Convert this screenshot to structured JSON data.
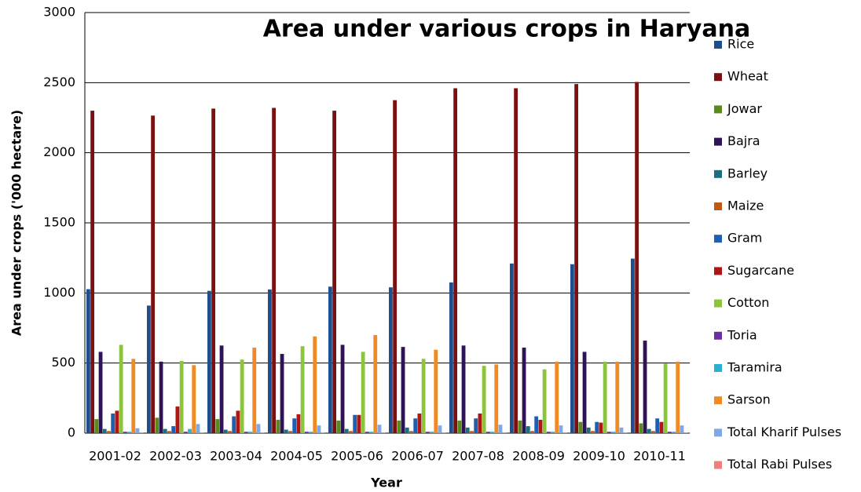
{
  "chart_data": {
    "type": "bar",
    "title": "Area under various crops in Haryana",
    "x_label": "Year",
    "y_label": "Area under crops ('000 hectare)",
    "categories": [
      "2001-02",
      "2002-03",
      "2003-04",
      "2004-05",
      "2005-06",
      "2006-07",
      "2007-08",
      "2008-09",
      "2009-10",
      "2010-11"
    ],
    "ylim": [
      0,
      3000
    ],
    "yticks": [
      0,
      500,
      1000,
      1500,
      2000,
      2500,
      3000
    ],
    "grid": true,
    "legend": "right",
    "series": [
      {
        "name": "Rice",
        "color": "#1f4e8c",
        "values": [
          1027,
          910,
          1015,
          1025,
          1045,
          1040,
          1075,
          1210,
          1205,
          1245
        ]
      },
      {
        "name": "Wheat",
        "color": "#7b1010",
        "values": [
          2300,
          2265,
          2315,
          2320,
          2300,
          2375,
          2460,
          2460,
          2490,
          2505
        ]
      },
      {
        "name": "Jowar",
        "color": "#5a8a1e",
        "values": [
          100,
          110,
          100,
          95,
          90,
          90,
          90,
          90,
          80,
          70
        ]
      },
      {
        "name": "Bajra",
        "color": "#2e1456",
        "values": [
          580,
          510,
          625,
          565,
          630,
          615,
          625,
          610,
          580,
          660
        ]
      },
      {
        "name": "Barley",
        "color": "#1b6f80",
        "values": [
          30,
          30,
          25,
          25,
          30,
          40,
          40,
          50,
          40,
          30
        ]
      },
      {
        "name": "Maize",
        "color": "#c05a10",
        "values": [
          15,
          15,
          15,
          15,
          15,
          15,
          15,
          15,
          15,
          15
        ]
      },
      {
        "name": "Gram",
        "color": "#1f5fb0",
        "values": [
          140,
          50,
          120,
          105,
          130,
          105,
          105,
          120,
          80,
          105
        ]
      },
      {
        "name": "Sugarcane",
        "color": "#b01515",
        "values": [
          160,
          190,
          160,
          135,
          130,
          140,
          140,
          95,
          75,
          80
        ]
      },
      {
        "name": "Cotton",
        "color": "#8cc43c",
        "values": [
          630,
          515,
          525,
          620,
          580,
          530,
          480,
          455,
          510,
          495
        ]
      },
      {
        "name": "Toria",
        "color": "#6a2fa0",
        "values": [
          10,
          10,
          10,
          10,
          10,
          10,
          10,
          10,
          10,
          10
        ]
      },
      {
        "name": "Taramira",
        "color": "#2ab0d0",
        "values": [
          10,
          30,
          10,
          10,
          10,
          10,
          10,
          10,
          10,
          10
        ]
      },
      {
        "name": "Sarson",
        "color": "#f08a24",
        "values": [
          530,
          485,
          610,
          690,
          700,
          595,
          490,
          510,
          510,
          510
        ]
      },
      {
        "name": "Total Kharif Pulses",
        "color": "#7fa8e8",
        "values": [
          35,
          65,
          65,
          55,
          60,
          55,
          60,
          55,
          40,
          55
        ]
      },
      {
        "name": "Total Rabi Pulses",
        "color": "#f08080",
        "values": [
          5,
          5,
          5,
          5,
          5,
          5,
          5,
          5,
          5,
          5
        ]
      }
    ]
  }
}
